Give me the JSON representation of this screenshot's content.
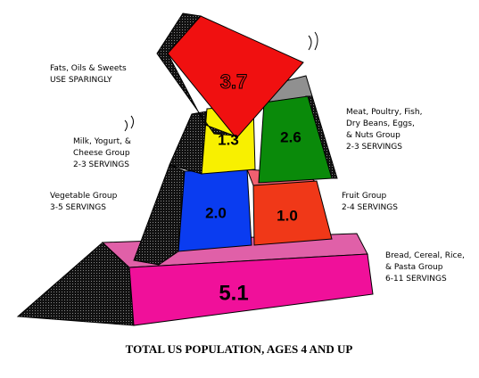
{
  "groups": [
    {
      "label": [
        "Fats, Oils & Sweets"
      ],
      "servings": "USE SPARINGLY",
      "value": "3.7"
    },
    {
      "label": [
        "Meat, Poultry, Fish,",
        "Dry Beans, Eggs,",
        "& Nuts Group"
      ],
      "servings": "2-3 SERVINGS",
      "value": "2.6"
    },
    {
      "label": [
        "Milk, Yogurt, &",
        "Cheese Group"
      ],
      "servings": "2-3 SERVINGS",
      "value": "1.3"
    },
    {
      "label": [
        "Vegetable Group"
      ],
      "servings": "3-5 SERVINGS",
      "value": "2.0"
    },
    {
      "label": [
        "Fruit Group"
      ],
      "servings": "2-4 SERVINGS",
      "value": "1.0"
    },
    {
      "label": [
        "Bread, Cereal, Rice,",
        "& Pasta Group"
      ],
      "servings": "6-11 SERVINGS",
      "value": "5.1"
    }
  ],
  "caption": "TOTAL US POPULATION, AGES 4 AND UP"
}
